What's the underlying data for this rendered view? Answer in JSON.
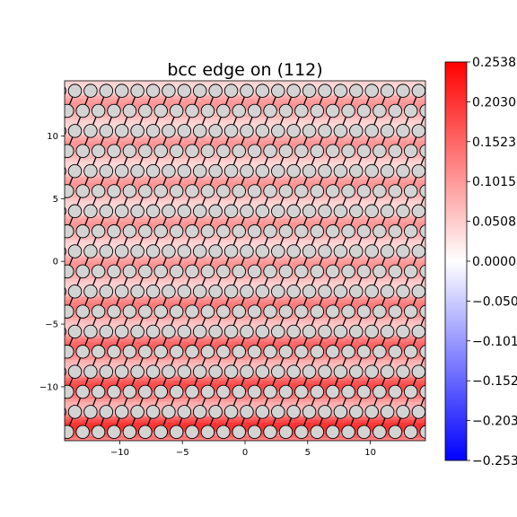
{
  "chart_data": {
    "type": "heatmap",
    "title": "bcc edge on (112)",
    "xlabel": "",
    "ylabel": "",
    "xlim": [
      -14.4,
      14.4
    ],
    "ylim": [
      -14.3,
      14.4
    ],
    "x_ticks": [
      -10,
      -5,
      0,
      5,
      10
    ],
    "y_ticks": [
      -10,
      -5,
      0,
      5,
      10
    ],
    "x_tick_labels": [
      "−10",
      "−5",
      "0",
      "5",
      "10"
    ],
    "y_tick_labels": [
      "−10",
      "−5",
      "0",
      "5",
      "10"
    ],
    "colormap": "bwr",
    "colorbar": {
      "min": -0.2538,
      "max": 0.2538,
      "ticks": [
        0.2538,
        0.203,
        0.1523,
        0.1015,
        0.0508,
        0.0,
        -0.0508,
        -0.1015,
        -0.1523,
        -0.203,
        -0.2538
      ],
      "tick_labels": [
        "0.2538",
        "0.2030",
        "0.1523",
        "0.1015",
        "0.0508",
        "0.0000",
        "−0.0508",
        "−0.1015",
        "−0.1523",
        "−0.2030",
        "−0.2538"
      ]
    },
    "atoms": {
      "face_color": "#d3d3d3",
      "edge_color": "#000000",
      "column_spacing": 1.247,
      "row_spacing": 1.6,
      "row_y_start": -13.6,
      "row_count": 18
    },
    "grid": false,
    "legend": "none"
  }
}
